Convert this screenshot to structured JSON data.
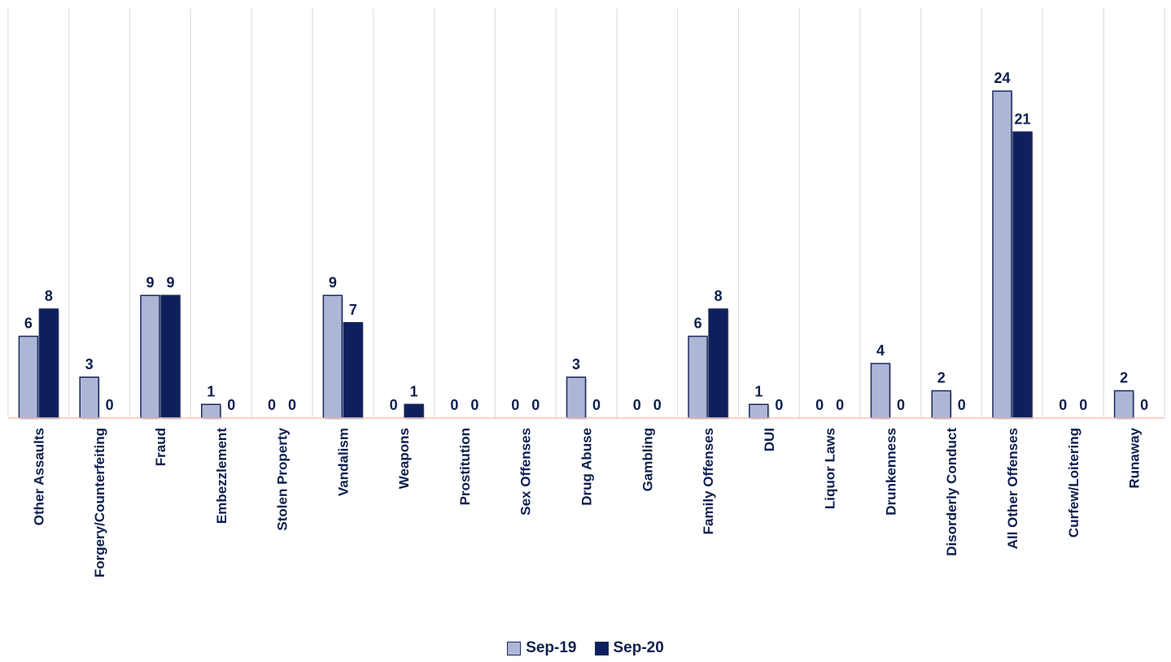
{
  "chart_data": {
    "type": "bar",
    "title": "",
    "xlabel": "",
    "ylabel": "",
    "ylim": [
      0,
      30
    ],
    "grid": "vertical category separators",
    "legend_position": "bottom",
    "categories": [
      "Other Assaults",
      "Forgery/Counterfeiting",
      "Fraud",
      "Embezzlement",
      "Stolen Property",
      "Vandalism",
      "Weapons",
      "Prostitution",
      "Sex Offenses",
      "Drug Abuse",
      "Gambling",
      "Family Offenses",
      "DUI",
      "Liquor Laws",
      "Drunkenness",
      "Disorderly Conduct",
      "All Other Offenses",
      "Curfew/Loitering",
      "Runaway"
    ],
    "series": [
      {
        "name": "Sep-19",
        "color": "#aeb6d6",
        "values": [
          6,
          3,
          9,
          1,
          0,
          9,
          0,
          0,
          0,
          3,
          0,
          6,
          1,
          0,
          4,
          2,
          24,
          0,
          2
        ]
      },
      {
        "name": "Sep-20",
        "color": "#0d1f5c",
        "values": [
          8,
          0,
          9,
          0,
          0,
          7,
          1,
          0,
          0,
          0,
          0,
          8,
          0,
          0,
          0,
          0,
          21,
          0,
          0
        ]
      }
    ]
  }
}
